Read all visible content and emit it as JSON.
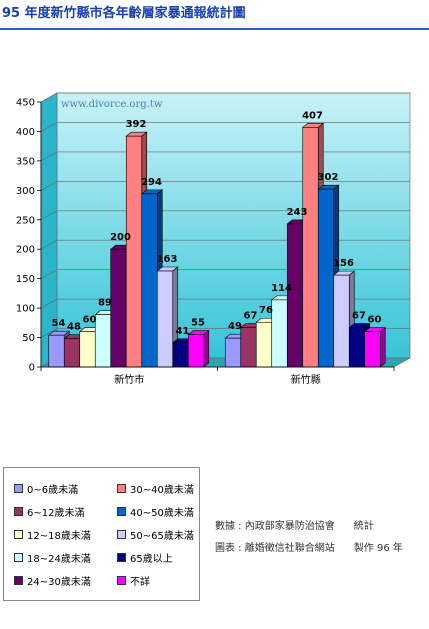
{
  "title": "95 年度新竹縣市各年齡層家暴通報統計圖",
  "chart_data": {
    "type": "bar",
    "watermark": "www.divorce.org.tw",
    "ylim": [
      0,
      450
    ],
    "yticks": [
      0,
      50,
      100,
      150,
      200,
      250,
      300,
      350,
      400,
      450
    ],
    "categories": [
      "新竹市",
      "新竹縣"
    ],
    "series": [
      {
        "name": "0~6歲未滿",
        "color": "#9999ff",
        "values": [
          54,
          49
        ]
      },
      {
        "name": "6~12歲未滿",
        "color": "#993366",
        "values": [
          48,
          67
        ]
      },
      {
        "name": "12~18歲未滿",
        "color": "#ffffcc",
        "values": [
          60,
          76
        ]
      },
      {
        "name": "18~24歲未滿",
        "color": "#ccffff",
        "values": [
          89,
          114
        ]
      },
      {
        "name": "24~30歲未滿",
        "color": "#660066",
        "values": [
          200,
          243
        ]
      },
      {
        "name": "30~40歲未滿",
        "color": "#ff8080",
        "values": [
          392,
          407
        ]
      },
      {
        "name": "40~50歲未滿",
        "color": "#0066cc",
        "values": [
          294,
          302
        ]
      },
      {
        "name": "50~65歲未滿",
        "color": "#ccccff",
        "values": [
          163,
          156
        ]
      },
      {
        "name": "65歲以上",
        "color": "#000080",
        "values": [
          41,
          67
        ]
      },
      {
        "name": "不詳",
        "color": "#ff00ff",
        "values": [
          55,
          60
        ]
      }
    ]
  },
  "source": {
    "line1": "數據 : 內政部家暴防治協會      統計",
    "line2": "圖表 : 離婚徵信社聯合網站      製作 96 年"
  }
}
